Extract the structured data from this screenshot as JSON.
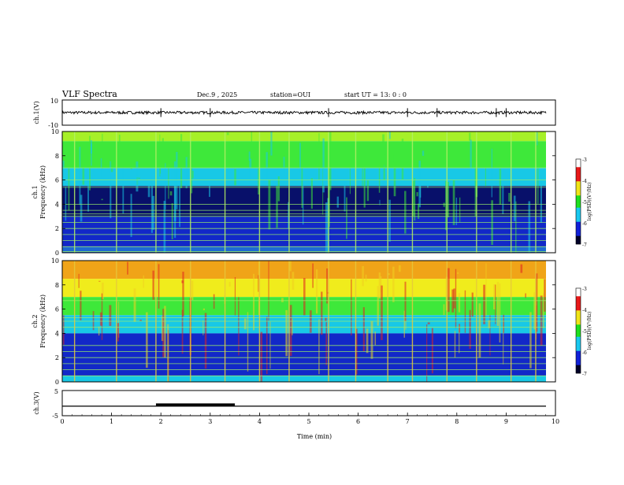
{
  "header": {
    "title": "VLF Spectra",
    "date": "Dec.9 , 2025",
    "station": "station=OUI",
    "start_ut": "start UT = 13: 0 : 0"
  },
  "chart_data": [
    {
      "type": "line",
      "name": "ch1-waveform",
      "ylabel": "ch.1(V)",
      "ylim": [
        -10,
        10
      ],
      "y_tick_labels": [
        "10",
        "-10"
      ],
      "baseline": 0,
      "spike_times_min": [
        2.0,
        3.0,
        5.4,
        7.0,
        7.6,
        8.8,
        9.0
      ]
    },
    {
      "type": "heatmap",
      "name": "ch1-spectrogram",
      "ylabel_top": "ch.1",
      "ylabel": "Frequency (kHz)",
      "ylim": [
        0,
        10
      ],
      "y_tick_labels": [
        "0",
        "2",
        "4",
        "6",
        "8",
        "10"
      ],
      "xlim": [
        0,
        10
      ],
      "colorbar": {
        "label": "log(PSD)(V²/Hz)",
        "range": [
          -7,
          -3
        ],
        "tick_labels": [
          "-3",
          "-4",
          "-5",
          "-6",
          "-7"
        ]
      },
      "bands_khz": [
        {
          "from": 9.2,
          "to": 10.0,
          "level": "green-yellow"
        },
        {
          "from": 7.0,
          "to": 9.2,
          "level": "green"
        },
        {
          "from": 5.5,
          "to": 7.0,
          "level": "cyan"
        },
        {
          "from": 3.0,
          "to": 5.5,
          "level": "dark-blue"
        },
        {
          "from": 0.5,
          "to": 3.0,
          "level": "blue"
        },
        {
          "from": 0.0,
          "to": 0.5,
          "level": "blue-green"
        }
      ],
      "lines_khz": [
        0.1,
        0.5,
        1.0,
        1.5,
        2.0,
        2.5,
        3.0,
        3.2,
        3.5,
        4.0,
        5.4,
        6.0,
        7.0
      ],
      "bursts_min": [
        0.25,
        1.1,
        1.9,
        2.6,
        3.3,
        4.0,
        4.6,
        5.4,
        5.95,
        6.6,
        7.1,
        7.8,
        8.4,
        9.1,
        9.6
      ]
    },
    {
      "type": "heatmap",
      "name": "ch2-spectrogram",
      "ylabel_top": "ch.2",
      "ylabel": "Frequency (kHz)",
      "ylim": [
        0,
        10
      ],
      "y_tick_labels": [
        "0",
        "2",
        "4",
        "6",
        "8",
        "10"
      ],
      "xlim": [
        0,
        10
      ],
      "colorbar": {
        "label": "log(PSD)(V²/Hz)",
        "range": [
          -7,
          -3
        ],
        "tick_labels": [
          "-3",
          "-4",
          "-5",
          "-6",
          "-7"
        ]
      },
      "bands_khz": [
        {
          "from": 8.5,
          "to": 10.0,
          "level": "orange-yellow"
        },
        {
          "from": 7.0,
          "to": 8.5,
          "level": "yellow"
        },
        {
          "from": 5.5,
          "to": 7.0,
          "level": "green"
        },
        {
          "from": 4.0,
          "to": 5.5,
          "level": "cyan"
        },
        {
          "from": 0.5,
          "to": 4.0,
          "level": "blue"
        },
        {
          "from": 0.0,
          "to": 0.5,
          "level": "cyan"
        }
      ],
      "lines_khz": [
        0.5,
        1.0,
        1.5,
        2.0,
        2.5,
        3.0,
        4.5,
        5.0,
        5.3,
        6.7
      ],
      "bursts_min": [
        0.25,
        1.1,
        1.9,
        2.6,
        3.3,
        4.0,
        4.6,
        5.4,
        5.95,
        6.6,
        7.1,
        7.8,
        8.4,
        9.1,
        9.6
      ]
    },
    {
      "type": "line",
      "name": "ch3-level",
      "ylabel": "ch.3(V)",
      "ylim": [
        -5,
        5
      ],
      "y_tick_labels": [
        "5",
        "-5"
      ],
      "baseline": -1.2,
      "high_segment_min": [
        1.9,
        3.5
      ],
      "xlabel": "Time (min)",
      "xlim": [
        0,
        10
      ],
      "x_tick_labels": [
        "0",
        "1",
        "2",
        "3",
        "4",
        "5",
        "6",
        "7",
        "8",
        "9",
        "10"
      ]
    }
  ]
}
